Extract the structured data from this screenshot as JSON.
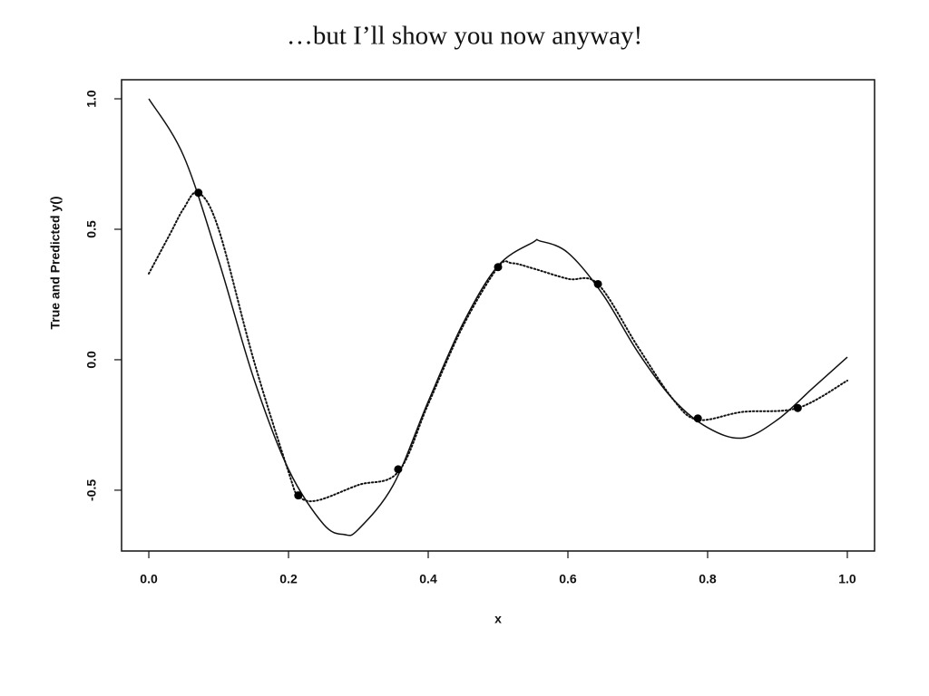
{
  "chart_data": {
    "type": "line",
    "title": "…but I’ll show you now anyway!",
    "xlabel": "x",
    "ylabel": "True and Predicted y()",
    "xlim": [
      -0.039,
      1.039
    ],
    "ylim": [
      -0.733,
      1.073
    ],
    "xticks": [
      {
        "value": 0,
        "label": "0.0"
      },
      0.2,
      0.4,
      0.6,
      0.8,
      {
        "value": 1,
        "label": "1.0"
      }
    ],
    "yticks": [
      -0.5,
      {
        "value": 0,
        "label": "0.0"
      },
      0.5,
      {
        "value": 1,
        "label": "1.0"
      }
    ],
    "series": [
      {
        "style": "solid",
        "color": "#111111",
        "x": [
          0,
          0.05,
          0.1,
          0.15,
          0.2,
          0.25,
          0.28,
          0.3,
          0.35,
          0.4,
          0.45,
          0.5,
          0.55,
          0.56,
          0.6,
          0.65,
          0.7,
          0.75,
          0.8,
          0.85,
          0.9,
          0.95,
          1.0
        ],
        "values": [
          1.0,
          0.78,
          0.38,
          -0.07,
          -0.42,
          -0.63,
          -0.67,
          -0.65,
          -0.48,
          -0.16,
          0.14,
          0.36,
          0.45,
          0.455,
          0.41,
          0.25,
          0.03,
          -0.15,
          -0.26,
          -0.3,
          -0.23,
          -0.11,
          0.01
        ]
      },
      {
        "style": "dotted",
        "color": "#111111",
        "x": [
          0,
          0.03,
          0.05,
          0.071,
          0.1,
          0.15,
          0.2,
          0.214,
          0.24,
          0.3,
          0.357,
          0.4,
          0.45,
          0.5,
          0.52,
          0.55,
          0.6,
          0.643,
          0.7,
          0.75,
          0.786,
          0.85,
          0.929,
          1.0
        ],
        "values": [
          0.33,
          0.48,
          0.58,
          0.64,
          0.5,
          0.0,
          -0.43,
          -0.52,
          -0.54,
          -0.48,
          -0.43,
          -0.17,
          0.13,
          0.355,
          0.37,
          0.35,
          0.31,
          0.29,
          0.05,
          -0.15,
          -0.23,
          -0.2,
          -0.185,
          -0.08
        ]
      },
      {
        "style": "markers",
        "color": "#000000",
        "x": [
          0.071,
          0.214,
          0.357,
          0.5,
          0.643,
          0.786,
          0.929
        ],
        "values": [
          0.64,
          -0.52,
          -0.42,
          0.355,
          0.29,
          -0.225,
          -0.185
        ]
      }
    ]
  }
}
